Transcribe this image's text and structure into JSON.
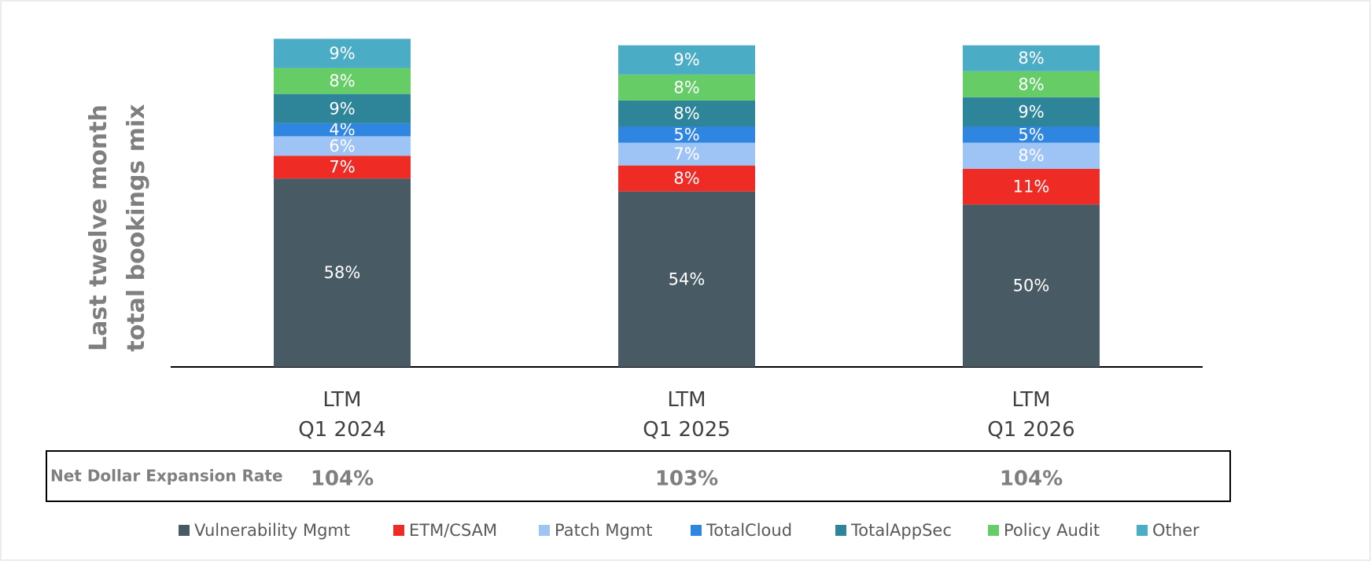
{
  "chart_data": {
    "type": "stacked_bar",
    "y_label": "Last twelve month\ntotal bookings mix",
    "categories": [
      "LTM\nQ1 2024",
      "LTM\nQ1 2025",
      "LTM\nQ1 2026"
    ],
    "series": [
      {
        "name": "Vulnerability Mgmt",
        "color": "#485a64",
        "values": [
          58,
          54,
          50
        ],
        "value_labels": [
          "58%",
          "54%",
          "50%"
        ]
      },
      {
        "name": "ETM/CSAM",
        "color": "#ee2b24",
        "values": [
          7,
          8,
          11
        ],
        "value_labels": [
          "7%",
          "8%",
          "11%"
        ]
      },
      {
        "name": "Patch Mgmt",
        "color": "#9ec3f5",
        "values": [
          6,
          7,
          8
        ],
        "value_labels": [
          "6%",
          "7%",
          "8%"
        ]
      },
      {
        "name": "TotalCloud",
        "color": "#2e86e0",
        "values": [
          4,
          5,
          5
        ],
        "value_labels": [
          "4%",
          "5%",
          "5%"
        ]
      },
      {
        "name": "TotalAppSec",
        "color": "#2e8499",
        "values": [
          9,
          8,
          9
        ],
        "value_labels": [
          "9%",
          "8%",
          "9%"
        ]
      },
      {
        "name": "Policy Audit",
        "color": "#66cc66",
        "values": [
          8,
          8,
          8
        ],
        "value_labels": [
          "8%",
          "8%",
          "8%"
        ]
      },
      {
        "name": "Other",
        "color": "#4bacc6",
        "values": [
          9,
          9,
          8
        ],
        "value_labels": [
          "9%",
          "9%",
          "8%"
        ]
      }
    ],
    "table": {
      "label": "Net Dollar Expansion Rate",
      "values": [
        104,
        103,
        104
      ],
      "value_labels": [
        "104%",
        "103%",
        "104%"
      ]
    },
    "legend": "bottom"
  }
}
